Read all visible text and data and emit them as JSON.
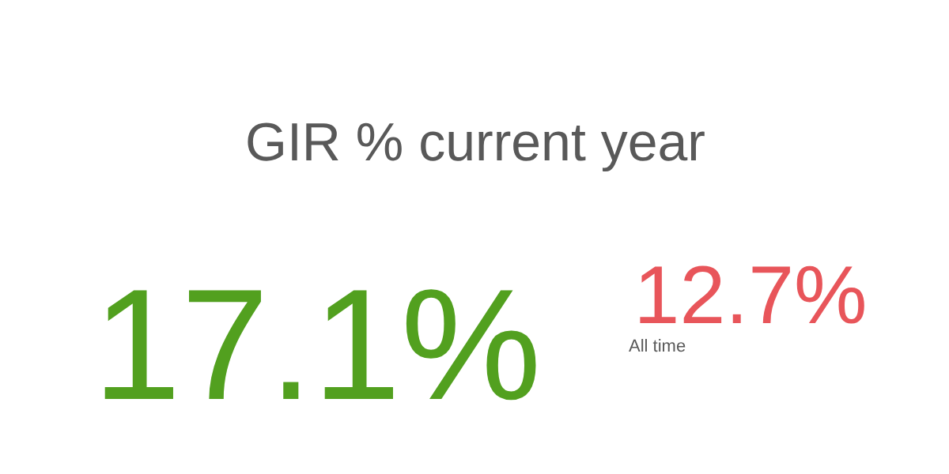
{
  "chart_data": {
    "type": "other",
    "title": "GIR % current year",
    "categories": [
      null,
      "All time"
    ],
    "values": [
      17.1,
      12.7
    ],
    "value_labels": [
      "17.1%",
      "12.7%"
    ],
    "colors": [
      "#52a01f",
      "#e8555a"
    ]
  }
}
